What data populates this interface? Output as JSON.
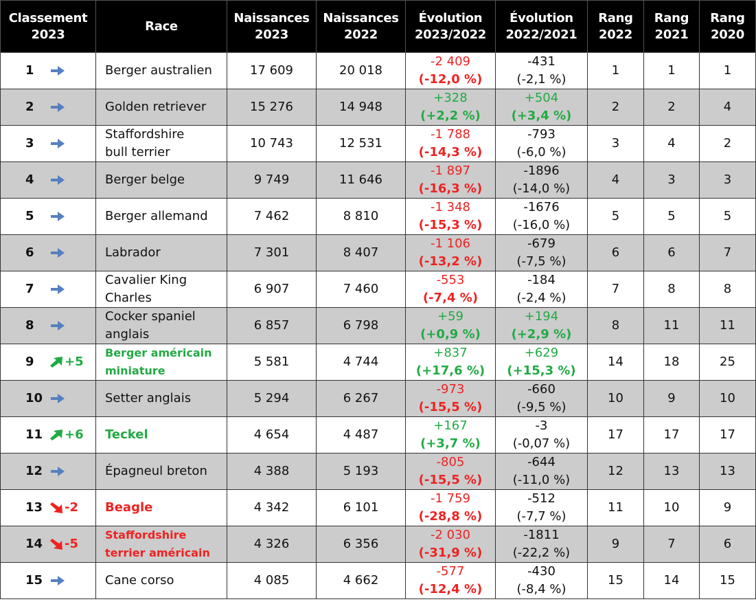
{
  "headers": {
    "rank": "Classement\n2023",
    "race": "Race",
    "n2023": "Naissances\n2023",
    "n2022": "Naissances\n2022",
    "evo1": "Évolution\n2023/2022",
    "evo2": "Évolution\n2022/2021",
    "rang2022": "Rang\n2022",
    "rang2021": "Rang\n2021",
    "rang2020": "Rang\n2020"
  },
  "colors": {
    "up": "#22aa44",
    "down": "#ee2222",
    "same": "#5580c0",
    "header_bg": "#000000",
    "row_alt": "#cccccc"
  },
  "rows": [
    {
      "rank": "1",
      "trend": "same",
      "trend_text": "",
      "race": "Berger australien",
      "race_style": "normal",
      "n2023": "17 609",
      "n2022": "20 018",
      "e1a": "-2 409",
      "e1b": "(-12,0 %)",
      "e1c": "neg",
      "e2a": "-431",
      "e2b": "(-2,1 %)",
      "e2c": "neu",
      "r22": "1",
      "r21": "1",
      "r20": "1"
    },
    {
      "rank": "2",
      "trend": "same",
      "trend_text": "",
      "race": "Golden retriever",
      "race_style": "normal",
      "n2023": "15 276",
      "n2022": "14 948",
      "e1a": "+328",
      "e1b": "(+2,2 %)",
      "e1c": "pos",
      "e2a": "+504",
      "e2b": "(+3,4 %)",
      "e2c": "pos",
      "r22": "2",
      "r21": "2",
      "r20": "4"
    },
    {
      "rank": "3",
      "trend": "same",
      "trend_text": "",
      "race": "Staffordshire\nbull terrier",
      "race_style": "normal",
      "n2023": "10 743",
      "n2022": "12 531",
      "e1a": "-1 788",
      "e1b": "(-14,3 %)",
      "e1c": "neg",
      "e2a": "-793",
      "e2b": "(-6,0 %)",
      "e2c": "neu",
      "r22": "3",
      "r21": "4",
      "r20": "2"
    },
    {
      "rank": "4",
      "trend": "same",
      "trend_text": "",
      "race": "Berger belge",
      "race_style": "normal",
      "n2023": "9 749",
      "n2022": "11 646",
      "e1a": "-1 897",
      "e1b": "(-16,3 %)",
      "e1c": "neg",
      "e2a": "-1896",
      "e2b": "(-14,0 %)",
      "e2c": "neu",
      "r22": "4",
      "r21": "3",
      "r20": "3"
    },
    {
      "rank": "5",
      "trend": "same",
      "trend_text": "",
      "race": "Berger allemand",
      "race_style": "normal",
      "n2023": "7 462",
      "n2022": "8 810",
      "e1a": "-1 348",
      "e1b": "(-15,3 %)",
      "e1c": "neg",
      "e2a": "-1676",
      "e2b": "(-16,0 %)",
      "e2c": "neu",
      "r22": "5",
      "r21": "5",
      "r20": "5"
    },
    {
      "rank": "6",
      "trend": "same",
      "trend_text": "",
      "race": "Labrador",
      "race_style": "normal",
      "n2023": "7 301",
      "n2022": "8 407",
      "e1a": "-1 106",
      "e1b": "(-13,2 %)",
      "e1c": "neg",
      "e2a": "-679",
      "e2b": "(-7,5 %)",
      "e2c": "neu",
      "r22": "6",
      "r21": "6",
      "r20": "7"
    },
    {
      "rank": "7",
      "trend": "same",
      "trend_text": "",
      "race": "Cavalier King\nCharles",
      "race_style": "normal",
      "n2023": "6 907",
      "n2022": "7 460",
      "e1a": "-553",
      "e1b": "(-7,4 %)",
      "e1c": "neg",
      "e2a": "-184",
      "e2b": "(-2,4 %)",
      "e2c": "neu",
      "r22": "7",
      "r21": "8",
      "r20": "8"
    },
    {
      "rank": "8",
      "trend": "same",
      "trend_text": "",
      "race": "Cocker spaniel\nanglais",
      "race_style": "normal",
      "n2023": "6 857",
      "n2022": "6 798",
      "e1a": "+59",
      "e1b": "(+0,9 %)",
      "e1c": "pos",
      "e2a": "+194",
      "e2b": "(+2,9 %)",
      "e2c": "pos",
      "r22": "8",
      "r21": "11",
      "r20": "11"
    },
    {
      "rank": "9",
      "trend": "up",
      "trend_text": "+5",
      "race": "Berger américain\nminiature",
      "race_style": "up-small",
      "n2023": "5 581",
      "n2022": "4 744",
      "e1a": "+837",
      "e1b": "(+17,6 %)",
      "e1c": "pos",
      "e2a": "+629",
      "e2b": "(+15,3 %)",
      "e2c": "pos",
      "r22": "14",
      "r21": "18",
      "r20": "25"
    },
    {
      "rank": "10",
      "trend": "same",
      "trend_text": "",
      "race": "Setter anglais",
      "race_style": "normal",
      "n2023": "5 294",
      "n2022": "6 267",
      "e1a": "-973",
      "e1b": "(-15,5 %)",
      "e1c": "neg",
      "e2a": "-660",
      "e2b": "(-9,5 %)",
      "e2c": "neu",
      "r22": "10",
      "r21": "9",
      "r20": "10"
    },
    {
      "rank": "11",
      "trend": "up",
      "trend_text": "+6",
      "race": "Teckel",
      "race_style": "up",
      "n2023": "4 654",
      "n2022": "4 487",
      "e1a": "+167",
      "e1b": "(+3,7 %)",
      "e1c": "pos",
      "e2a": "-3",
      "e2b": "(-0,07 %)",
      "e2c": "neu",
      "r22": "17",
      "r21": "17",
      "r20": "17"
    },
    {
      "rank": "12",
      "trend": "same",
      "trend_text": "",
      "race": "Épagneul breton",
      "race_style": "normal",
      "n2023": "4 388",
      "n2022": "5 193",
      "e1a": "-805",
      "e1b": "(-15,5 %)",
      "e1c": "neg",
      "e2a": "-644",
      "e2b": "(-11,0 %)",
      "e2c": "neu",
      "r22": "12",
      "r21": "13",
      "r20": "13"
    },
    {
      "rank": "13",
      "trend": "down",
      "trend_text": "-2",
      "race": "Beagle",
      "race_style": "down",
      "n2023": "4 342",
      "n2022": "6 101",
      "e1a": "-1 759",
      "e1b": "(-28,8 %)",
      "e1c": "neg",
      "e2a": "-512",
      "e2b": "(-7,7 %)",
      "e2c": "neu",
      "r22": "11",
      "r21": "10",
      "r20": "9"
    },
    {
      "rank": "14",
      "trend": "down",
      "trend_text": "-5",
      "race": "Staffordshire\nterrier américain",
      "race_style": "down-small",
      "n2023": "4 326",
      "n2022": "6 356",
      "e1a": "-2 030",
      "e1b": "(-31,9 %)",
      "e1c": "neg",
      "e2a": "-1811",
      "e2b": "(-22,2 %)",
      "e2c": "neu",
      "r22": "9",
      "r21": "7",
      "r20": "6"
    },
    {
      "rank": "15",
      "trend": "same",
      "trend_text": "",
      "race": "Cane corso",
      "race_style": "normal",
      "n2023": "4 085",
      "n2022": "4 662",
      "e1a": "-577",
      "e1b": "(-12,4 %)",
      "e1c": "neg",
      "e2a": "-430",
      "e2b": "(-8,4 %)",
      "e2c": "neu",
      "r22": "15",
      "r21": "14",
      "r20": "15"
    }
  ]
}
